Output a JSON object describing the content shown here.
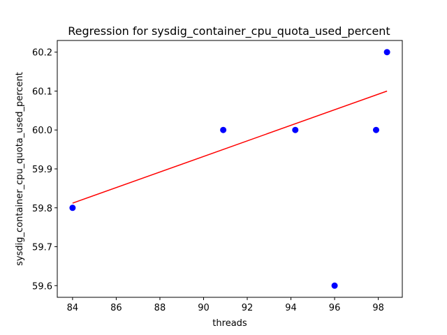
{
  "chart_data": {
    "type": "scatter",
    "title": "Regression for sysdig_container_cpu_quota_used_percent",
    "xlabel": "threads",
    "ylabel": "sysdig_container_cpu_quota_used_percent",
    "xlim": [
      83.3,
      99.1
    ],
    "ylim": [
      59.57,
      60.23
    ],
    "x_ticks": [
      84,
      86,
      88,
      90,
      92,
      94,
      96,
      98
    ],
    "x_tick_labels": [
      "84",
      "86",
      "88",
      "90",
      "92",
      "94",
      "96",
      "98"
    ],
    "y_ticks": [
      59.6,
      59.7,
      59.8,
      59.9,
      60.0,
      60.1,
      60.2
    ],
    "y_tick_labels": [
      "59.6",
      "59.7",
      "59.8",
      "59.9",
      "60.0",
      "60.1",
      "60.2"
    ],
    "grid": false,
    "series": [
      {
        "kind": "scatter",
        "color": "#0000ff",
        "points": [
          {
            "x": 84.0,
            "y": 59.8
          },
          {
            "x": 90.9,
            "y": 60.0
          },
          {
            "x": 94.2,
            "y": 60.0
          },
          {
            "x": 96.0,
            "y": 59.6
          },
          {
            "x": 97.9,
            "y": 60.0
          },
          {
            "x": 98.4,
            "y": 60.2
          }
        ]
      },
      {
        "kind": "line",
        "color": "#ff0000",
        "points": [
          {
            "x": 84.0,
            "y": 59.812
          },
          {
            "x": 98.4,
            "y": 60.1
          }
        ]
      }
    ]
  }
}
